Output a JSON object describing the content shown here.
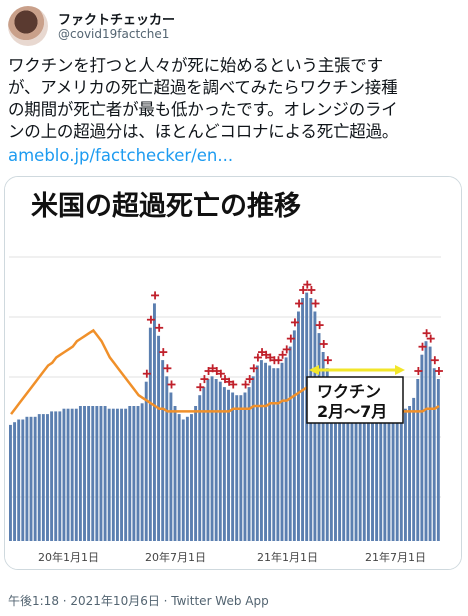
{
  "author": {
    "display_name": "ファクトチェッカー",
    "handle": "@covid19factche1"
  },
  "tweet": {
    "lines": [
      "ワクチンを打つと人々が死に始めるという主張です",
      "が、アメリカの死亡超過を調べてみたらワクチン接種",
      "の期間が死亡者が最も低かったです。オレンジのライ",
      "ンの上の超過分は、ほとんどコロナによる死亡超過。"
    ],
    "link": "ameblo.jp/factchecker/en..."
  },
  "chart_data": {
    "type": "bar",
    "title": "米国の超過死亡の推移",
    "x_tick_labels": [
      "20年1月1日",
      "20年7月1日",
      "21年1月1日",
      "21年7月1日"
    ],
    "annotation": {
      "text_line1": "ワクチン",
      "text_line2": "2月～7月"
    },
    "colors": {
      "bars": "#5b7fb0",
      "expected_line": "#f0902a",
      "threshold_markers": "#c0202b",
      "annotation_arrow": "#f2e62a"
    },
    "values": [
      63,
      64,
      65,
      65,
      66,
      66,
      66,
      67,
      67,
      67,
      68,
      68,
      68,
      69,
      69,
      69,
      69,
      70,
      70,
      70,
      70,
      70,
      70,
      70,
      69,
      69,
      69,
      69,
      69,
      70,
      70,
      70,
      71,
      79,
      99,
      108,
      96,
      87,
      81,
      75,
      70,
      67,
      65,
      66,
      67,
      70,
      74,
      77,
      80,
      81,
      80,
      79,
      77,
      76,
      75,
      74,
      74,
      75,
      77,
      81,
      85,
      87,
      86,
      85,
      84,
      84,
      86,
      88,
      92,
      98,
      105,
      110,
      112,
      110,
      105,
      97,
      90,
      84,
      80,
      76,
      73,
      71,
      70,
      69,
      68,
      69,
      70,
      70,
      69,
      69,
      68,
      69,
      68,
      68,
      68,
      68,
      69,
      70,
      73,
      80,
      89,
      94,
      92,
      84,
      80
    ],
    "expected": [
      67,
      69,
      71,
      73,
      75,
      77,
      79,
      81,
      83,
      85,
      86,
      88,
      89,
      90,
      91,
      92,
      94,
      95,
      96,
      97,
      98,
      96,
      94,
      91,
      88,
      86,
      84,
      82,
      80,
      78,
      76,
      74,
      73,
      72,
      71,
      70,
      69,
      69,
      68,
      68,
      68,
      68,
      68,
      68,
      68,
      68,
      68,
      68,
      68,
      68,
      68,
      68,
      68,
      68,
      69,
      69,
      69,
      69,
      69,
      70,
      70,
      70,
      70,
      71,
      71,
      71,
      72,
      72,
      73,
      74,
      75,
      76,
      77,
      77,
      77,
      76,
      76,
      75,
      75,
      74,
      74,
      73,
      72,
      71,
      71,
      70,
      70,
      69,
      69,
      69,
      69,
      68,
      68,
      68,
      68,
      68,
      68,
      68,
      68,
      68,
      68,
      69,
      69,
      69,
      70
    ]
  },
  "footer": {
    "meta": "午後1:18 · 2021年10月6日 · Twitter Web App"
  }
}
